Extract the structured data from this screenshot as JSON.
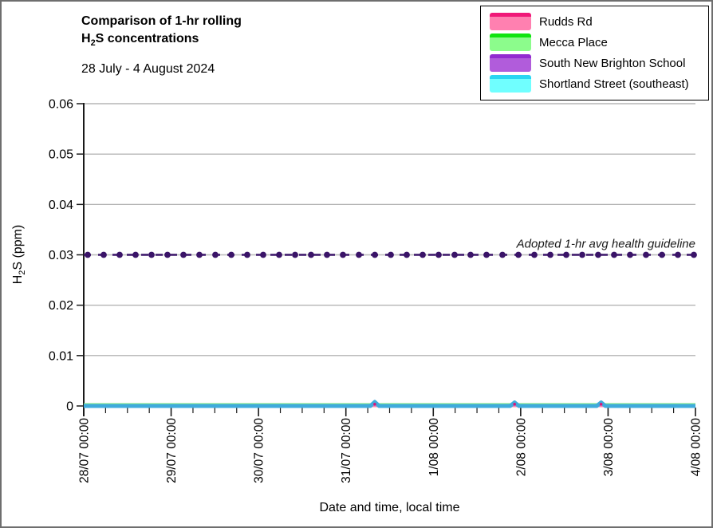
{
  "header": {
    "title_line1": "Comparison of 1-hr rolling",
    "title_line2": {
      "prefix": "H",
      "sub": "2",
      "suffix": "S concentrations"
    },
    "subtitle": "28 July - 4 August 2024"
  },
  "axes": {
    "y_title": {
      "prefix": "H",
      "sub": "2",
      "suffix": "S (ppm)"
    },
    "x_title": "Date and time, local time"
  },
  "colors": {
    "gridline": "#a6a6a6",
    "axis": "#1a1a1a",
    "guideline_dark_purple": "#3a1468",
    "guideline_base_gray": "#bfbfbf",
    "plotted_cyan_line": "#3fabdc",
    "plotted_green_edge": "#7de87d",
    "plotted_pink_spike": "#d6187a"
  },
  "chart_data": {
    "type": "line",
    "title": "Comparison of 1-hr rolling H2S concentrations",
    "subtitle": "28 July - 4 August 2024",
    "xlabel": "Date and time, local time",
    "ylabel": "H2S (ppm)",
    "ylim": [
      0,
      0.06
    ],
    "grid": "horizontal-on",
    "legend_position": "top-right",
    "y_ticks": {
      "values": [
        0,
        0.01,
        0.02,
        0.03,
        0.04,
        0.05,
        0.06
      ],
      "labels": [
        "0",
        "0.01",
        "0.02",
        "0.03",
        "0.04",
        "0.05",
        "0.06"
      ]
    },
    "x_ticks": {
      "labels": [
        "28/07 00:00",
        "29/07 00:00",
        "30/07 00:00",
        "31/07 00:00",
        "1/08 00:00",
        "2/08 00:00",
        "3/08 00:00",
        "4/08 00:00"
      ],
      "positions_days": [
        0,
        1,
        2,
        3,
        4,
        5,
        6,
        7
      ],
      "minor_step_days": 0.25
    },
    "x_range_days": [
      0,
      7
    ],
    "guideline": {
      "value": 0.03,
      "label": "Adopted 1-hr avg health guideline"
    },
    "series": [
      {
        "name": "Rudds Rd",
        "legend_fill": "#ff80b0",
        "legend_line": "#f01878",
        "points_days": [
          [
            0,
            0
          ],
          [
            7,
            0
          ]
        ],
        "spike_days": [
          3.33,
          4.93,
          5.92
        ],
        "spike_value": 0.0003
      },
      {
        "name": "Mecca Place",
        "legend_fill": "#8cfc8c",
        "legend_line": "#10e410",
        "points_days": [
          [
            0,
            0
          ],
          [
            7,
            0
          ]
        ]
      },
      {
        "name": "South New Brighton School",
        "legend_fill": "#b15cdb",
        "legend_line": "#922bd0",
        "points_days": [
          [
            0,
            0
          ],
          [
            7,
            0
          ]
        ]
      },
      {
        "name": "Shortland Street (southeast)",
        "legend_fill": "#70ffff",
        "legend_line": "#2bd6f2",
        "points_days": [
          [
            0,
            0
          ],
          [
            3.28,
            0
          ],
          [
            3.33,
            0.0008
          ],
          [
            3.38,
            0
          ],
          [
            4.88,
            0
          ],
          [
            4.93,
            0.0007
          ],
          [
            4.98,
            0
          ],
          [
            5.87,
            0
          ],
          [
            5.92,
            0.0007
          ],
          [
            5.97,
            0
          ],
          [
            7,
            0
          ]
        ]
      }
    ]
  }
}
